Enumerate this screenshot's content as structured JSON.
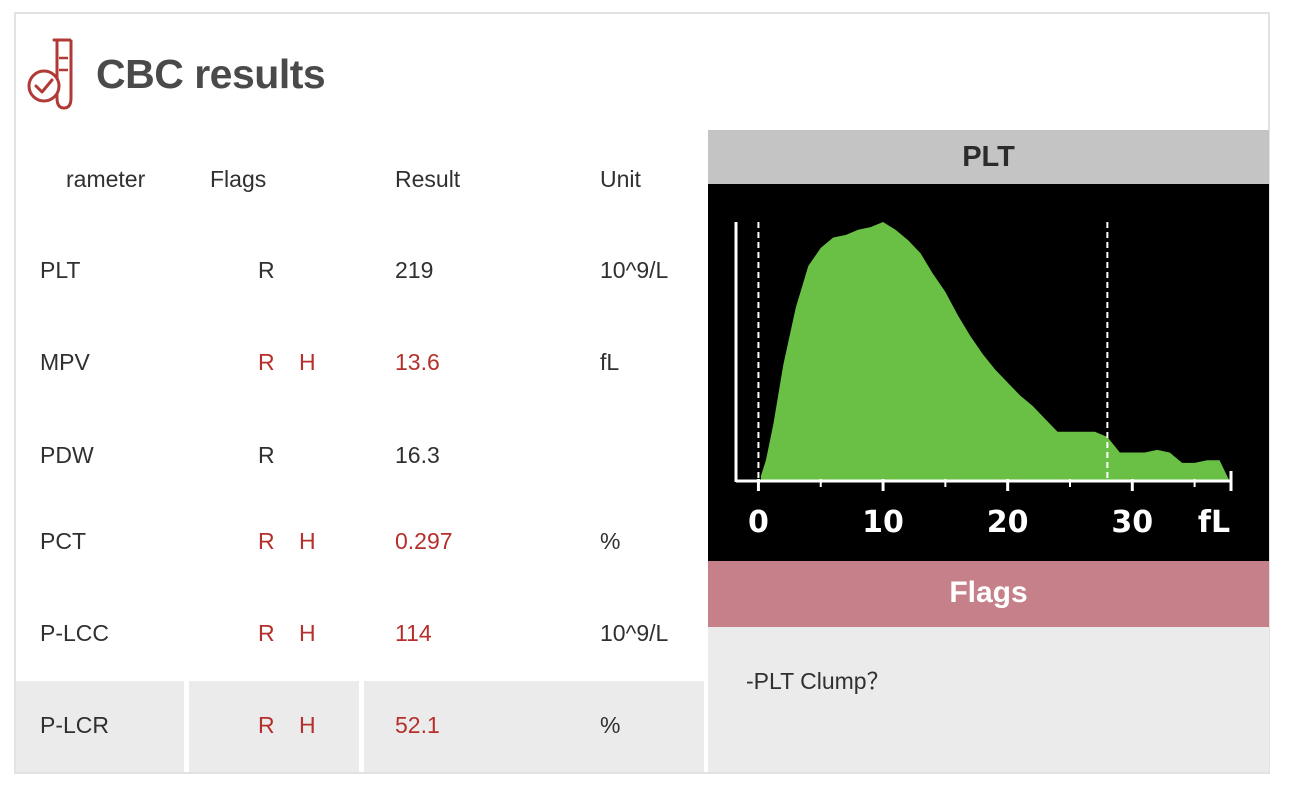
{
  "header": {
    "title": "CBC results",
    "icon": "test-tube-check-icon"
  },
  "table": {
    "columns": [
      "rameter",
      "Flags",
      "Result",
      "Unit"
    ],
    "rows": [
      {
        "param": "PLT",
        "flag1": "R",
        "flag2": "",
        "result": "219",
        "unit": "10^9/L",
        "abnormal": false
      },
      {
        "param": "MPV",
        "flag1": "R",
        "flag2": "H",
        "result": "13.6",
        "unit": "fL",
        "abnormal": true
      },
      {
        "param": "PDW",
        "flag1": "R",
        "flag2": "",
        "result": "16.3",
        "unit": "",
        "abnormal": false
      },
      {
        "param": "PCT",
        "flag1": "R",
        "flag2": "H",
        "result": "0.297",
        "unit": "%",
        "abnormal": true
      },
      {
        "param": "P-LCC",
        "flag1": "R",
        "flag2": "H",
        "result": "114",
        "unit": "10^9/L",
        "abnormal": true
      },
      {
        "param": "P-LCR",
        "flag1": "R",
        "flag2": "H",
        "result": "52.1",
        "unit": "%",
        "abnormal": true
      }
    ]
  },
  "histogram": {
    "title": "PLT",
    "x_ticks": [
      "0",
      "10",
      "20",
      "30",
      "fL"
    ],
    "fill_color": "#6abf45",
    "chart_data": {
      "type": "area",
      "x": [
        0.2,
        0.6,
        1.2,
        2,
        3,
        4,
        5,
        6,
        7,
        8,
        9,
        10,
        11,
        12,
        13,
        14,
        15,
        16,
        17,
        18,
        19,
        20,
        21,
        22,
        23,
        24,
        25,
        26,
        27,
        28,
        29,
        30,
        31,
        32,
        33,
        34,
        35,
        36,
        37,
        37.8
      ],
      "y": [
        0.02,
        0.08,
        0.22,
        0.45,
        0.67,
        0.83,
        0.9,
        0.94,
        0.95,
        0.97,
        0.98,
        1.0,
        0.97,
        0.93,
        0.88,
        0.8,
        0.73,
        0.64,
        0.56,
        0.49,
        0.43,
        0.38,
        0.33,
        0.29,
        0.24,
        0.19,
        0.19,
        0.19,
        0.19,
        0.17,
        0.11,
        0.11,
        0.11,
        0.12,
        0.11,
        0.07,
        0.07,
        0.08,
        0.08,
        0.0
      ],
      "xlim": [
        -1.8,
        38
      ],
      "ylim": [
        0,
        1.0
      ],
      "threshold_lines": [
        0,
        28
      ]
    }
  },
  "flags_panel": {
    "title": "Flags",
    "items": [
      "-PLT Clump？"
    ]
  }
}
